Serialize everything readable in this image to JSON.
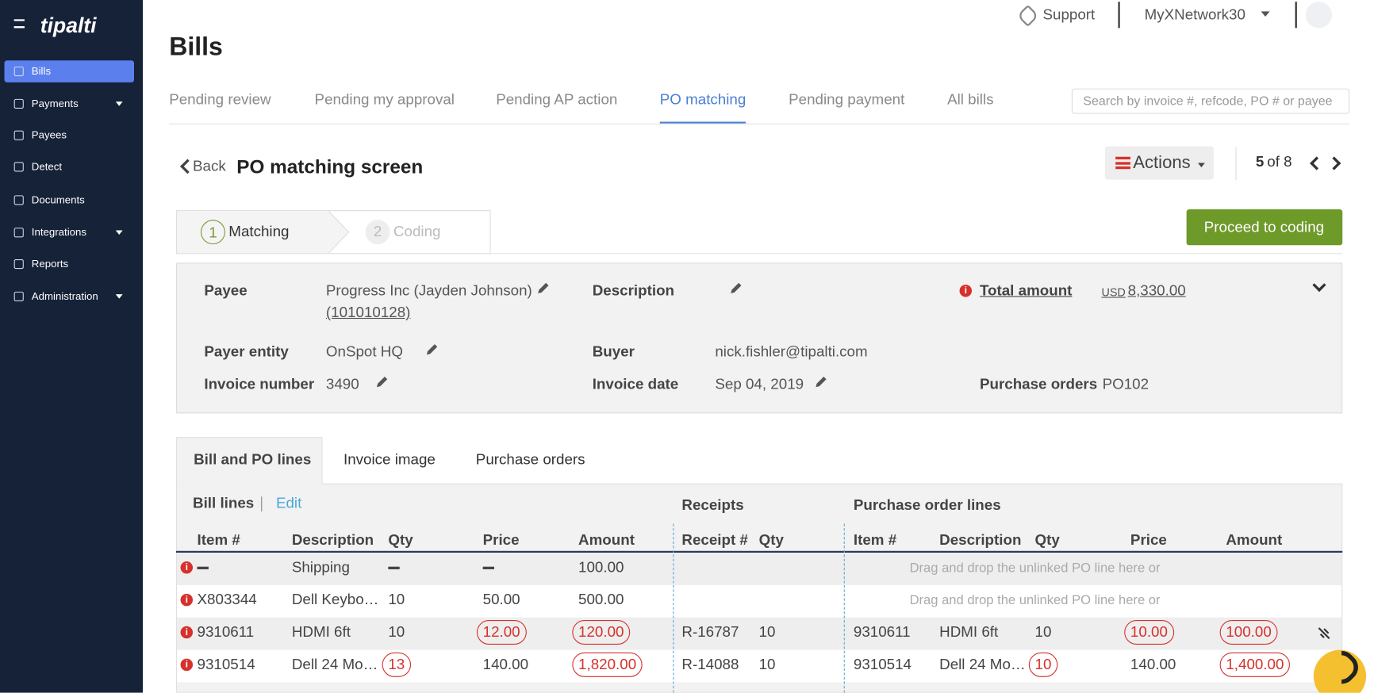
{
  "sidebar": {
    "logo": "tipalti",
    "nav": [
      "Bills",
      "Payments",
      "Payees",
      "Detect",
      "Documents",
      "Integrations",
      "Reports",
      "Administration"
    ],
    "active": 0,
    "expandable": [
      1,
      5,
      7
    ]
  },
  "header": {
    "support": "Support",
    "account": "MyXNetwork30",
    "title": "Bills"
  },
  "tabs": {
    "items": [
      "Pending review",
      "Pending my approval",
      "Pending AP action",
      "PO matching",
      "Pending payment",
      "All bills"
    ],
    "active": 3,
    "search_placeholder": "Search by invoice #, refcode, PO # or payee"
  },
  "toolbar": {
    "back": "Back",
    "title": "PO matching screen",
    "actions": "Actions",
    "pager_current": "5",
    "pager_of": "of 8"
  },
  "steps": [
    {
      "number": "1",
      "label": "Matching"
    },
    {
      "number": "2",
      "label": "Coding"
    }
  ],
  "proceed_button": "Proceed to coding",
  "details": {
    "payee_label": "Payee",
    "payee": "Progress Inc (Jayden Johnson)",
    "payee_id": "(101010128)",
    "description_label": "Description",
    "total_label": "Total amount",
    "total_currency": "USD",
    "total_value": "8,330.00",
    "payer_label": "Payer entity",
    "payer": "OnSpot HQ",
    "buyer_label": "Buyer",
    "buyer": "nick.fishler@tipalti.com",
    "invoice_number_label": "Invoice number",
    "invoice_number": "3490",
    "invoice_date_label": "Invoice date",
    "invoice_date": "Sep 04, 2019",
    "po_label": "Purchase orders",
    "po": "PO102"
  },
  "lower_tabs": {
    "items": [
      "Bill and PO lines",
      "Invoice image",
      "Purchase orders"
    ],
    "active": 0
  },
  "table": {
    "bill_title": "Bill lines",
    "edit": "Edit",
    "receipts_title": "Receipts",
    "po_title": "Purchase order lines",
    "bill_columns": [
      "Item #",
      "Description",
      "Qty",
      "Price",
      "Amount"
    ],
    "receipt_columns": [
      "Receipt #",
      "Qty"
    ],
    "po_columns": [
      "Item #",
      "Description",
      "Qty",
      "Price",
      "Amount"
    ],
    "rows": [
      {
        "bill": [
          null,
          "Shipping",
          null,
          null,
          "100.00"
        ],
        "receipt": null,
        "po_drop": "Drag and drop the unlinked PO line here or",
        "circled": []
      },
      {
        "bill": [
          "X803344",
          "Dell Keybo…",
          "10",
          "50.00",
          "500.00"
        ],
        "receipt": null,
        "po_drop": "Drag and drop the unlinked PO line here or",
        "circled": []
      },
      {
        "bill": [
          "9310611",
          "HDMI 6ft",
          "10",
          "12.00",
          "120.00"
        ],
        "receipt": [
          "R-16787",
          "10"
        ],
        "po": [
          "9310611",
          "HDMI 6ft",
          "10",
          "10.00",
          "100.00"
        ],
        "circled": [
          "bill.3",
          "bill.4",
          "po.3",
          "po.4"
        ]
      },
      {
        "bill": [
          "9310514",
          "Dell 24 Mo…",
          "13",
          "140.00",
          "1,820.00"
        ],
        "receipt": [
          "R-14088",
          "10"
        ],
        "po": [
          "9310514",
          "Dell 24 Mo…",
          "10",
          "140.00",
          "1,400.00"
        ],
        "circled": [
          "bill.2",
          "bill.4",
          "po.2",
          "po.4"
        ]
      }
    ]
  }
}
